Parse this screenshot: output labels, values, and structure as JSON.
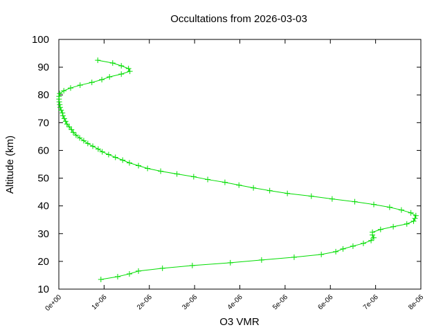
{
  "chart_data": {
    "type": "line",
    "title": "Occultations from 2026-03-03",
    "xlabel": "O3 VMR",
    "ylabel": "Altitude (km)",
    "xlim": [
      0,
      8e-06
    ],
    "xticks": [
      {
        "value": 0,
        "label": "0e+00"
      },
      {
        "value": 1e-06,
        "label": "1e-06"
      },
      {
        "value": 2e-06,
        "label": "2e-06"
      },
      {
        "value": 3e-06,
        "label": "3e-06"
      },
      {
        "value": 4e-06,
        "label": "4e-06"
      },
      {
        "value": 5e-06,
        "label": "5e-06"
      },
      {
        "value": 6e-06,
        "label": "6e-06"
      },
      {
        "value": 7e-06,
        "label": "7e-06"
      },
      {
        "value": 8e-06,
        "label": "8e-06"
      }
    ],
    "ylim": [
      10,
      100
    ],
    "yticks": [
      10,
      20,
      30,
      40,
      50,
      60,
      70,
      80,
      90,
      100
    ],
    "color": "#00dd00",
    "x": [
      9.3e-07,
      1.3e-06,
      1.56e-06,
      1.76e-06,
      2.29e-06,
      2.95e-06,
      3.79e-06,
      4.48e-06,
      5.2e-06,
      5.8e-06,
      6.12e-06,
      6.28e-06,
      6.5e-06,
      6.73e-06,
      6.9e-06,
      6.96e-06,
      6.93e-06,
      6.93e-06,
      7.11e-06,
      7.39e-06,
      7.69e-06,
      7.84e-06,
      7.87e-06,
      7.89e-06,
      7.78e-06,
      7.57e-06,
      7.31e-06,
      6.96e-06,
      6.54e-06,
      6.04e-06,
      5.58e-06,
      5.05e-06,
      4.66e-06,
      4.3e-06,
      3.98e-06,
      3.67e-06,
      3.29e-06,
      2.98e-06,
      2.61e-06,
      2.25e-06,
      1.96e-06,
      1.76e-06,
      1.56e-06,
      1.41e-06,
      1.25e-06,
      1.1e-06,
      9.6e-07,
      8.7e-07,
      7.5e-07,
      6.4e-07,
      5.5e-07,
      4.6e-07,
      3.8e-07,
      3.2e-07,
      2.8e-07,
      2.3e-07,
      1.8e-07,
      1.5e-07,
      1.2e-07,
      9e-08,
      8e-08,
      5e-08,
      3e-08,
      2e-08,
      1e-08,
      5e-09,
      5e-09,
      2e-08,
      1.1e-07,
      2.6e-07,
      4.7e-07,
      7.3e-07,
      9.5e-07,
      1.12e-06,
      1.38e-06,
      1.57e-06,
      1.54e-06,
      1.38e-06,
      1.19e-06,
      8.6e-07
    ],
    "values": [
      13.5,
      14.5,
      15.5,
      16.5,
      17.5,
      18.5,
      19.5,
      20.5,
      21.5,
      22.5,
      23.5,
      24.5,
      25.5,
      26.5,
      27.5,
      28.5,
      29.5,
      30.5,
      31.5,
      32.5,
      33.5,
      34.5,
      35.5,
      36.5,
      37.5,
      38.5,
      39.5,
      40.5,
      41.5,
      42.5,
      43.5,
      44.5,
      45.5,
      46.5,
      47.5,
      48.5,
      49.5,
      50.5,
      51.5,
      52.5,
      53.5,
      54.5,
      55.5,
      56.5,
      57.5,
      58.5,
      59.5,
      60.5,
      61.5,
      62.5,
      63.5,
      64.5,
      65.5,
      66.5,
      67.5,
      68.5,
      69.5,
      70.5,
      71.5,
      72.5,
      73.5,
      74.5,
      75.5,
      76.5,
      77.5,
      78.5,
      79.5,
      80.5,
      81.5,
      82.5,
      83.5,
      84.5,
      85.5,
      86.5,
      87.5,
      88.5,
      89.5,
      90.5,
      91.5,
      92.5
    ]
  }
}
